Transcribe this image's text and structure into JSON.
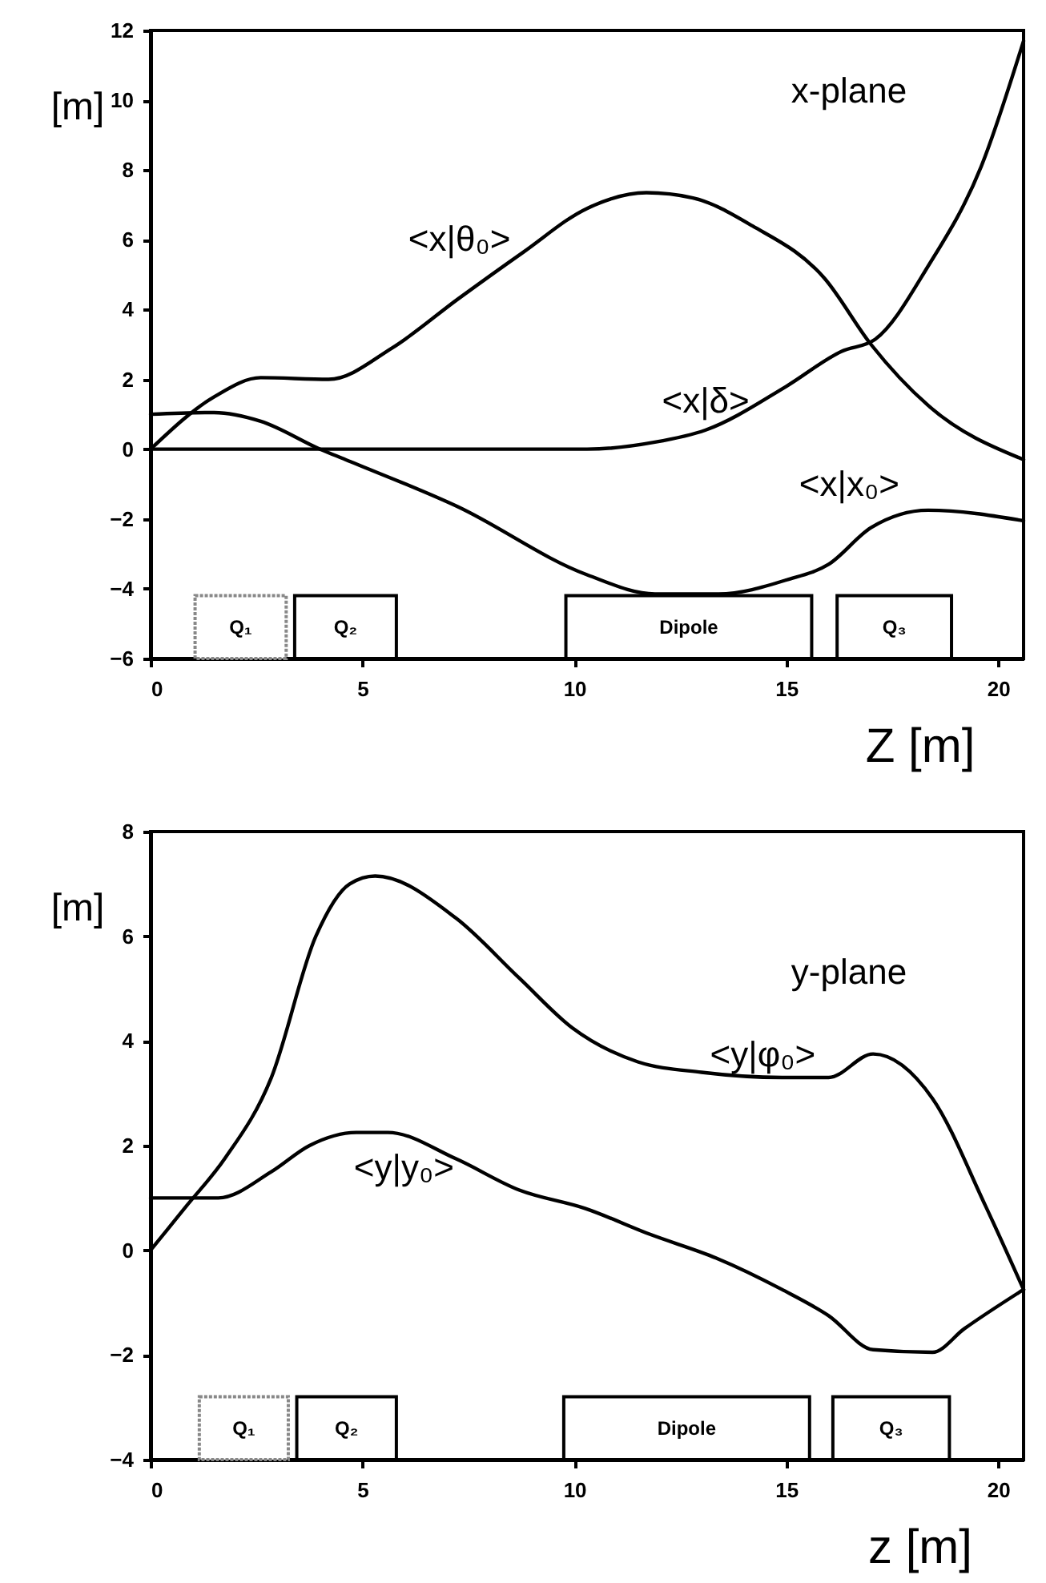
{
  "chart_data": [
    {
      "type": "line",
      "xlabel": "Z   [m]",
      "ylabel": "[m]",
      "annotations": [
        "x-plane"
      ],
      "xlim": [
        0,
        20.6
      ],
      "xticks": [
        0,
        5,
        10,
        15,
        20
      ],
      "ylim": [
        -6,
        12
      ],
      "yticks": [
        -6,
        -4,
        -2,
        0,
        2,
        4,
        6,
        8,
        10,
        12
      ],
      "grid": false,
      "legend": false,
      "line_style": "solid",
      "bands": [
        {
          "axis": "x",
          "from": 1.05,
          "to": 3.2,
          "label": "Q₁",
          "color": "#888888"
        },
        {
          "axis": "x",
          "from": 3.4,
          "to": 5.8,
          "label": "Q₂",
          "color": "#000000"
        },
        {
          "axis": "x",
          "from": 9.8,
          "to": 15.6,
          "label": "Dipole",
          "color": "#000000"
        },
        {
          "axis": "x",
          "from": 16.2,
          "to": 18.9,
          "label": "Q₃",
          "color": "#000000"
        }
      ],
      "series": [
        {
          "name": "<x|θ₀>",
          "color": "#000000",
          "x": [
            0,
            1.5,
            2.6,
            4.2,
            5.7,
            7.25,
            8.8,
            10.3,
            11.7,
            12.8,
            14.2,
            15.9,
            17.0,
            18.35,
            20.6
          ],
          "values": [
            0,
            1.5,
            2.05,
            2.0,
            2.9,
            4.3,
            5.65,
            6.9,
            7.35,
            7.2,
            6.4,
            4.9,
            3.0,
            1.25,
            -0.3
          ]
        },
        {
          "name": "<x|δ>",
          "color": "#000000",
          "x": [
            0,
            5,
            10.3,
            11.9,
            13.1,
            15.0,
            16.3,
            17.1,
            18.35,
            19.6,
            20.6
          ],
          "values": [
            0,
            0,
            0,
            0.2,
            0.55,
            1.8,
            2.8,
            3.15,
            5.25,
            8.1,
            11.7
          ]
        },
        {
          "name": "<x|x₀>",
          "color": "#000000",
          "x": [
            0,
            1.5,
            2.6,
            4.0,
            4.6,
            7.25,
            10.3,
            11.9,
            13.4,
            15.0,
            16.0,
            17.0,
            18.35,
            20.6
          ],
          "values": [
            1,
            1.05,
            0.8,
            0,
            -0.3,
            -1.65,
            -3.6,
            -4.15,
            -4.15,
            -3.75,
            -3.3,
            -2.25,
            -1.75,
            -2.05
          ]
        }
      ]
    },
    {
      "type": "line",
      "xlabel": "z   [m]",
      "ylabel": "[m]",
      "annotations": [
        "y-plane"
      ],
      "xlim": [
        0,
        20.6
      ],
      "xticks": [
        0,
        5,
        10,
        15,
        20
      ],
      "ylim": [
        -4,
        8
      ],
      "yticks": [
        -4,
        -2,
        0,
        2,
        4,
        6,
        8
      ],
      "grid": false,
      "legend": false,
      "line_style": "solid",
      "bands": [
        {
          "axis": "x",
          "from": 1.15,
          "to": 3.25,
          "label": "Q₁",
          "color": "#888888"
        },
        {
          "axis": "x",
          "from": 3.45,
          "to": 5.8,
          "label": "Q₂",
          "color": "#000000"
        },
        {
          "axis": "x",
          "from": 9.75,
          "to": 15.55,
          "label": "Dipole",
          "color": "#000000"
        },
        {
          "axis": "x",
          "from": 16.1,
          "to": 18.85,
          "label": "Q₃",
          "color": "#000000"
        }
      ],
      "series": [
        {
          "name": "<y|φ₀>",
          "color": "#000000",
          "x": [
            0,
            0.85,
            1.75,
            2.85,
            3.9,
            4.7,
            5.3,
            7.2,
            8.7,
            9.95,
            11.5,
            13.0,
            14.9,
            16.0,
            17.05,
            18.45,
            19.7,
            20.6
          ],
          "values": [
            0,
            0.85,
            1.75,
            3.3,
            6.0,
            7.0,
            7.15,
            6.35,
            5.2,
            4.25,
            3.6,
            3.4,
            3.3,
            3.3,
            3.75,
            2.9,
            0.85,
            -0.75
          ]
        },
        {
          "name": "<y|y₀>",
          "color": "#000000",
          "x": [
            0,
            1.6,
            2.85,
            3.75,
            4.85,
            5.6,
            7.2,
            8.7,
            10.25,
            11.8,
            13.35,
            14.9,
            16.0,
            17.05,
            18.45,
            19.2,
            20.6
          ],
          "values": [
            1,
            1.0,
            1.5,
            2.0,
            2.25,
            2.25,
            1.75,
            1.15,
            0.8,
            0.3,
            -0.15,
            -0.75,
            -1.25,
            -1.9,
            -1.95,
            -1.5,
            -0.75
          ]
        }
      ]
    }
  ]
}
